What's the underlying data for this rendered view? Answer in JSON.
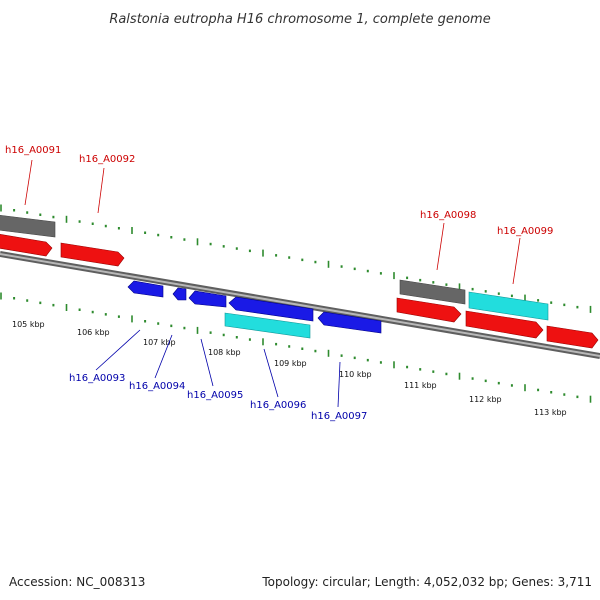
{
  "title": "Ralstonia eutropha H16 chromosome 1, complete genome",
  "footer": {
    "accession": "Accession: NC_008313",
    "summary": "Topology: circular; Length: 4,052,032 bp; Genes: 3,711"
  },
  "colors": {
    "backbone": "#808080",
    "tick": "#2e8b2e",
    "forward_label": "#cc0000",
    "reverse_label": "#0000aa",
    "red_gene": "#ee1111",
    "gray_gene": "#666666",
    "blue_gene": "#1a1ae6",
    "cyan_gene": "#22dddd"
  },
  "scale_labels": [
    "105 kbp",
    "106 kbp",
    "107 kbp",
    "108 kbp",
    "109 kbp",
    "110 kbp",
    "111 kbp",
    "112 kbp",
    "113 kbp"
  ],
  "forward_labels": [
    "h16_A0091",
    "h16_A0092",
    "h16_A0098",
    "h16_A0099"
  ],
  "reverse_labels": [
    "h16_A0093",
    "h16_A0094",
    "h16_A0095",
    "h16_A0096",
    "h16_A0097"
  ]
}
